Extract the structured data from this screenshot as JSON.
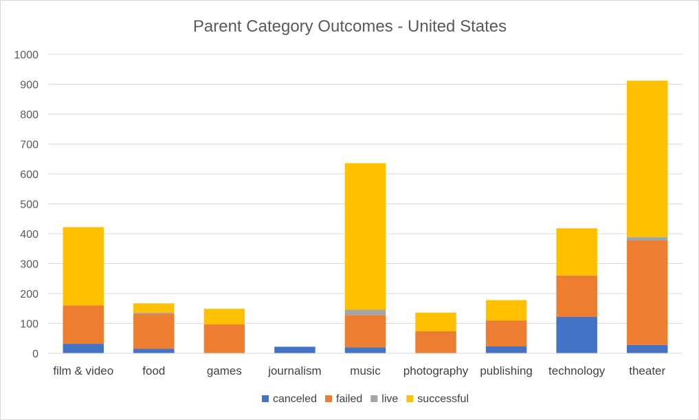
{
  "chart_data": {
    "type": "bar",
    "stacked": true,
    "title": "Parent Category Outcomes - United States",
    "xlabel": "",
    "ylabel": "",
    "ylim": [
      0,
      1000
    ],
    "ytick_step": 100,
    "grid": true,
    "legend_position": "bottom",
    "categories": [
      "film & video",
      "food",
      "games",
      "journalism",
      "music",
      "photography",
      "publishing",
      "technology",
      "theater"
    ],
    "series": [
      {
        "name": "canceled",
        "color": "#4472C4",
        "values": [
          32,
          15,
          0,
          22,
          20,
          0,
          23,
          122,
          28
        ]
      },
      {
        "name": "failed",
        "color": "#ED7D31",
        "values": [
          128,
          117,
          97,
          0,
          108,
          74,
          87,
          138,
          349
        ]
      },
      {
        "name": "live",
        "color": "#A5A5A5",
        "values": [
          0,
          4,
          0,
          0,
          18,
          0,
          0,
          0,
          12
        ]
      },
      {
        "name": "successful",
        "color": "#FFC000",
        "values": [
          262,
          31,
          52,
          0,
          490,
          62,
          68,
          158,
          523
        ]
      }
    ]
  }
}
